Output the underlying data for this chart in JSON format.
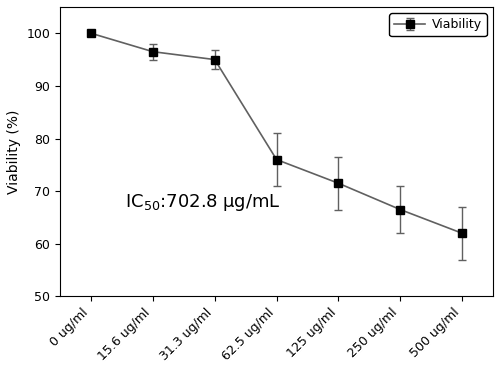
{
  "x_labels": [
    "0 ug/ml",
    "15.6 ug/ml",
    "31.3 ug/ml",
    "62.5 ug/ml",
    "125 ug/ml",
    "250 ug/ml",
    "500 ug/ml"
  ],
  "x_positions": [
    0,
    1,
    2,
    3,
    4,
    5,
    6
  ],
  "y_values": [
    100.0,
    96.5,
    95.0,
    76.0,
    71.5,
    66.5,
    62.0
  ],
  "y_errors": [
    0.3,
    1.5,
    1.8,
    5.0,
    5.0,
    4.5,
    5.0
  ],
  "ylabel": "Viability (%)",
  "ylim": [
    50,
    105
  ],
  "yticks": [
    50,
    60,
    70,
    80,
    90,
    100
  ],
  "legend_label": "Viability",
  "line_color": "#606060",
  "marker_color": "#000000",
  "marker_size": 6,
  "line_width": 1.2,
  "capsize": 3,
  "ecolor": "#606060",
  "elinewidth": 1.0,
  "background_color": "#ffffff",
  "ic50_fontsize": 13,
  "ic50_sub_fontsize": 9,
  "xlabel_fontsize": 9,
  "ylabel_fontsize": 10,
  "tick_fontsize": 9
}
